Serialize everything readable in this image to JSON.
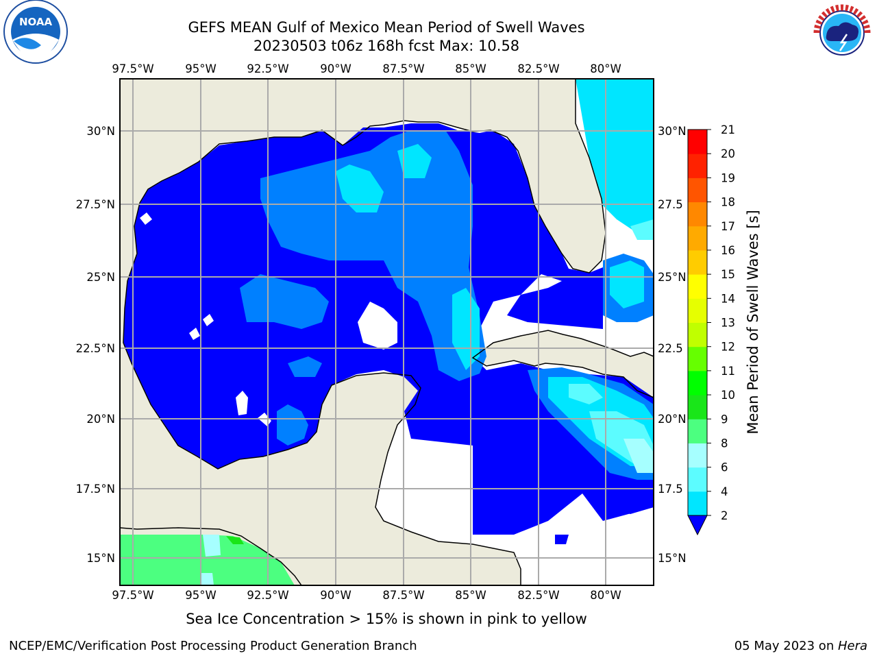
{
  "header": {
    "title_line1": "GEFS MEAN Gulf of Mexico Mean Period of Swell Waves",
    "title_line2": "20230503 t06z 168h fcst   Max: 10.58"
  },
  "logos": {
    "left": {
      "name": "NOAA",
      "ring_text": "NATIONAL OCEANIC AND ATMOSPHERIC ADMINISTRATION · U.S. DEPARTMENT OF COMMERCE"
    },
    "right": {
      "name": "NATIONAL WEATHER SERVICE"
    }
  },
  "map": {
    "lon_labels": [
      "97.5°W",
      "95°W",
      "92.5°W",
      "90°W",
      "87.5°W",
      "85°W",
      "82.5°W",
      "80°W"
    ],
    "lat_labels_left": [
      "30°N",
      "27.5°N",
      "25°N",
      "22.5°N",
      "20°N",
      "17.5°N",
      "15°N"
    ],
    "lat_labels_right": [
      "30°N",
      "27.5",
      "25°N",
      "22.5",
      "20°N",
      "17.5",
      "15°N"
    ],
    "extent": {
      "lon_min": -98,
      "lon_max": -78.3,
      "lat_min": 14.0,
      "lat_max": 31.8
    },
    "colors": {
      "land": "#ecebdc",
      "missing": "#ffffff",
      "grid": "#aaaaaa",
      "coast": "#000000"
    }
  },
  "colorbar": {
    "label": "Mean Period of Swell Waves [s]",
    "ticks": [
      "2",
      "4",
      "6",
      "8",
      "9",
      "10",
      "11",
      "12",
      "13",
      "14",
      "15",
      "16",
      "17",
      "18",
      "19",
      "20",
      "21"
    ],
    "colors": [
      "#0000ff",
      "#0080ff",
      "#00e6ff",
      "#5cfcff",
      "#a6ffff",
      "#4cff80",
      "#19e619",
      "#00ff00",
      "#66ff00",
      "#c0ff00",
      "#e6ff00",
      "#ffff00",
      "#ffcc00",
      "#ffaa00",
      "#ff8800",
      "#ff5500",
      "#ff2200",
      "#ff0000"
    ],
    "extend_min_color": "#0000ff"
  },
  "note": "Sea Ice Concentration > 15% is shown in pink to yellow",
  "footer": {
    "left": "NCEP/EMC/Verification Post Processing Product Generation Branch",
    "right_date": "05 May 2023 on ",
    "right_host": "Hera"
  }
}
